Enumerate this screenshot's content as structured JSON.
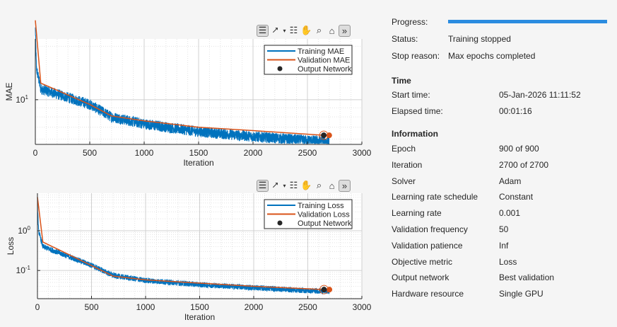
{
  "colors": {
    "training": "#0072bd",
    "validation": "#d95319",
    "marker": "#262626",
    "progress": "#2b8ce0",
    "grid": "#d9d9d9"
  },
  "toolbar_icons": [
    "plot-view-icon",
    "export-icon",
    "dropdown-caret-icon",
    "data-tip-icon",
    "pan-hand-icon",
    "zoom-icon",
    "home-icon",
    "expand-icon"
  ],
  "chart_data": [
    {
      "type": "line",
      "xlabel": "Iteration",
      "ylabel": "MAE",
      "xlim": [
        0,
        3000
      ],
      "ylim": [
        5.6,
        22
      ],
      "yscale": "log",
      "grid": true,
      "minor_grid": true,
      "xticks": [
        0,
        500,
        1000,
        1500,
        2000,
        2500,
        3000
      ],
      "xtick_labels": [
        "0",
        "500",
        "1000",
        "1500",
        "2000",
        "2500",
        "3000"
      ],
      "yticks": [
        {
          "value": 10,
          "base": "10",
          "exp": "1"
        }
      ],
      "legend": {
        "placement": "top-right",
        "entries": [
          "Training MAE",
          "Validation MAE",
          "Output Network"
        ]
      },
      "series": [
        {
          "name": "Training MAE",
          "x": [
            0,
            10,
            50,
            500,
            700,
            1000,
            1500,
            2000,
            2500,
            2700
          ],
          "values": [
            25,
            15,
            11.5,
            9.4,
            8.0,
            7.3,
            6.6,
            6.2,
            5.9,
            5.8
          ],
          "noisy": true
        },
        {
          "name": "Validation MAE",
          "x": [
            0,
            50,
            500,
            700,
            1000,
            1500,
            2000,
            2650,
            2700
          ],
          "values": [
            28,
            12.4,
            9.4,
            8.1,
            7.6,
            7.0,
            6.7,
            6.3,
            6.3
          ]
        }
      ],
      "output_network": {
        "x": 2650,
        "y": 6.3
      },
      "final_point": {
        "x": 2700,
        "y": 6.3
      }
    },
    {
      "type": "line",
      "xlabel": "Iteration",
      "ylabel": "Loss",
      "xlim": [
        0,
        3000
      ],
      "ylim": [
        0.0195,
        8.8
      ],
      "yscale": "log",
      "grid": true,
      "minor_grid": true,
      "xticks": [
        0,
        500,
        1000,
        1500,
        2000,
        2500,
        3000
      ],
      "xtick_labels": [
        "0",
        "500",
        "1000",
        "1500",
        "2000",
        "2500",
        "3000"
      ],
      "yticks": [
        {
          "value": 1,
          "base": "10",
          "exp": "0"
        },
        {
          "value": 0.1,
          "base": "10",
          "exp": "-1"
        }
      ],
      "legend": {
        "placement": "top-right",
        "entries": [
          "Training Loss",
          "Validation Loss",
          "Output Network"
        ]
      },
      "series": [
        {
          "name": "Training Loss",
          "x": [
            0,
            10,
            50,
            500,
            700,
            1000,
            1500,
            2000,
            2500,
            2700
          ],
          "values": [
            5,
            1,
            0.4,
            0.135,
            0.075,
            0.056,
            0.044,
            0.037,
            0.031,
            0.03
          ],
          "noisy": true
        },
        {
          "name": "Validation Loss",
          "x": [
            0,
            50,
            500,
            700,
            1000,
            1500,
            2000,
            2650,
            2700
          ],
          "values": [
            7,
            0.52,
            0.133,
            0.072,
            0.058,
            0.048,
            0.04,
            0.033,
            0.033
          ]
        }
      ],
      "output_network": {
        "x": 2650,
        "y": 0.033
      },
      "final_point": {
        "x": 2700,
        "y": 0.033
      }
    }
  ],
  "progress": {
    "label": "Progress:",
    "percent": 100
  },
  "status": {
    "label": "Status:",
    "value": "Training stopped"
  },
  "stop_reason": {
    "label": "Stop reason:",
    "value": "Max epochs completed"
  },
  "time": {
    "header": "Time",
    "rows": [
      {
        "label": "Start time:",
        "value": "05-Jan-2026 11:11:52"
      },
      {
        "label": "Elapsed time:",
        "value": "00:01:16"
      }
    ]
  },
  "information": {
    "header": "Information",
    "rows": [
      {
        "label": "Epoch",
        "value": "900 of 900"
      },
      {
        "label": "Iteration",
        "value": "2700 of 2700"
      },
      {
        "label": "Solver",
        "value": "Adam"
      },
      {
        "label": "Learning rate schedule",
        "value": "Constant"
      },
      {
        "label": "Learning rate",
        "value": "0.001"
      },
      {
        "label": "Validation frequency",
        "value": "50"
      },
      {
        "label": "Validation patience",
        "value": "Inf"
      },
      {
        "label": "Objective metric",
        "value": "Loss"
      },
      {
        "label": "Output network",
        "value": "Best validation"
      },
      {
        "label": "Hardware resource",
        "value": "Single GPU"
      }
    ]
  }
}
